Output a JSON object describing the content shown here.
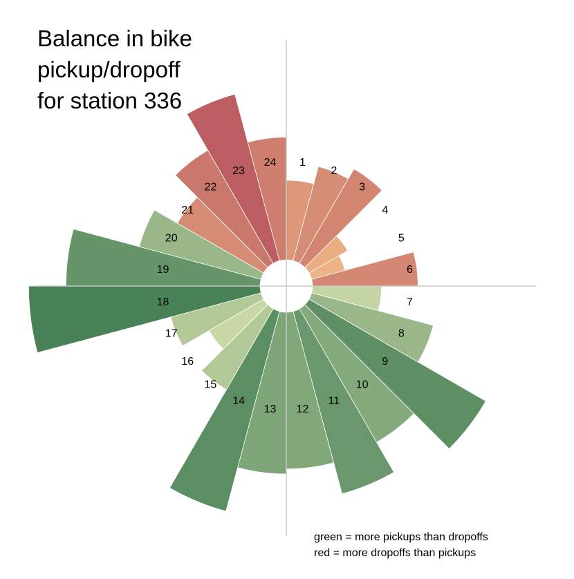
{
  "chart_data": {
    "type": "bar",
    "subtype": "polar-bar",
    "title_lines": [
      "Balance in bike",
      "pickup/dropoff",
      "for station 336"
    ],
    "categories": [
      "1",
      "2",
      "3",
      "4",
      "5",
      "6",
      "7",
      "8",
      "9",
      "10",
      "11",
      "12",
      "13",
      "14",
      "15",
      "16",
      "17",
      "18",
      "19",
      "20",
      "21",
      "22",
      "23",
      "24"
    ],
    "series": [
      {
        "values": [
          -16,
          -24,
          -30,
          -5,
          -3,
          -28,
          12,
          40,
          105,
          60,
          90,
          62,
          66,
          108,
          22,
          10,
          22,
          135,
          95,
          40,
          -25,
          -43,
          -75,
          -38
        ]
      }
    ],
    "value_scale": "sqrt",
    "legend": [
      "green = more pickups than dropoffs",
      "red = more dropoffs than pickups"
    ],
    "colors": {
      "positive_strong": "#4a8258",
      "positive_light": "#f8f7c2",
      "negative_light": "#f8c98e",
      "negative_strong": "#a83a52",
      "axis": "#c8c8c8"
    }
  }
}
